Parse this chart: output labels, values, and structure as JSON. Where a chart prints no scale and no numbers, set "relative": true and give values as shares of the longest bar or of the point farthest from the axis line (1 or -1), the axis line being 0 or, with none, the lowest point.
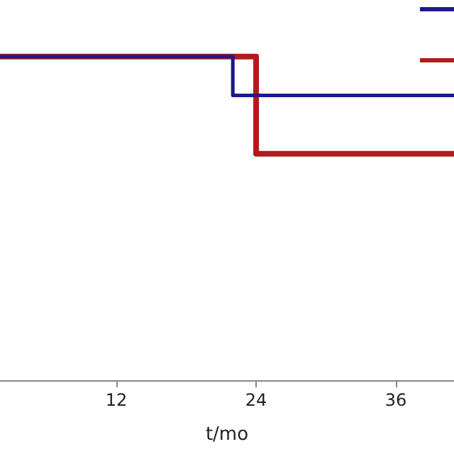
{
  "chart_data": {
    "type": "step",
    "xlabel": "t/mo",
    "relative": true,
    "x": [
      2,
      22,
      41
    ],
    "xlim": [
      2,
      41
    ],
    "xticks": [
      12,
      24,
      36
    ],
    "series": [
      {
        "color": "#1a1a8c",
        "values": [
          1,
          0.88,
          0.88
        ]
      },
      {
        "color": "#b01c1c",
        "x": [
          2,
          24,
          41
        ],
        "values": [
          1,
          0.7,
          0.7
        ]
      }
    ]
  }
}
